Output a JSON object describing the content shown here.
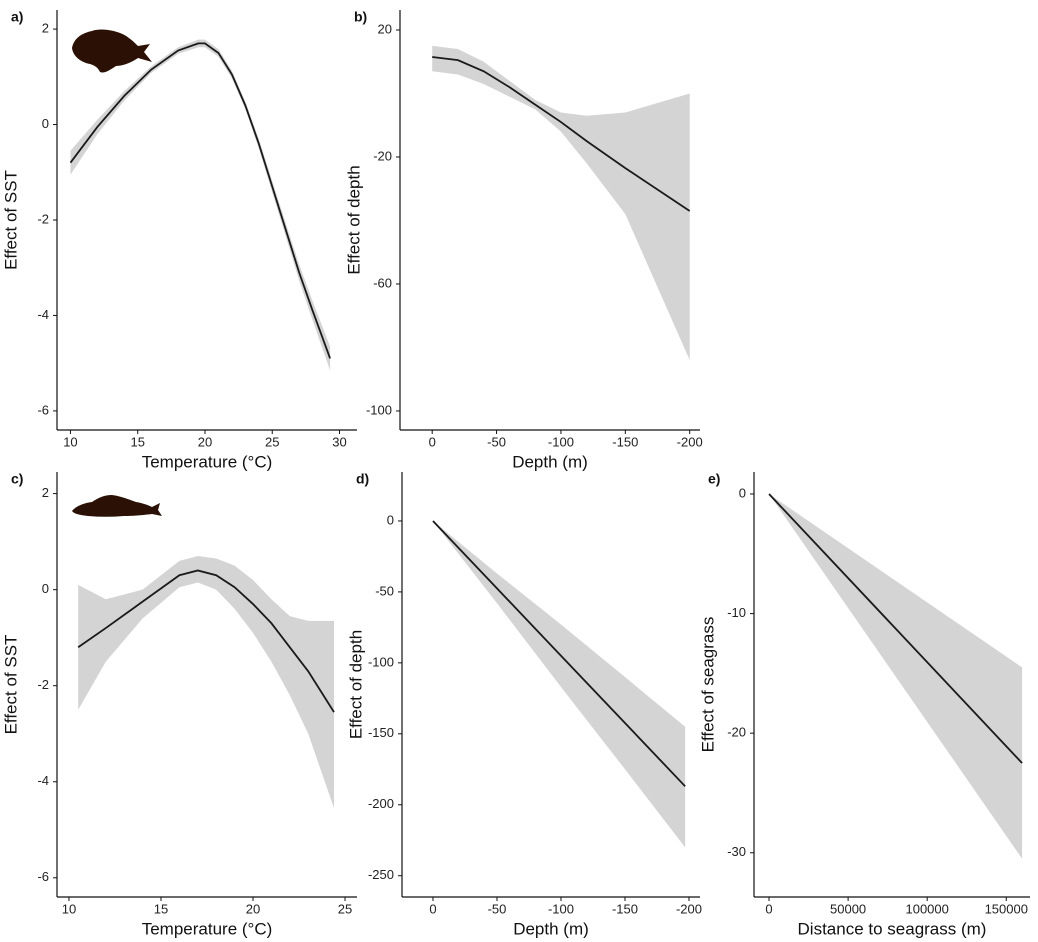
{
  "chart_data": [
    {
      "type": "line",
      "label": "a)",
      "xlabel": "Temperature (°C)",
      "ylabel": "Effect of SST",
      "x": [
        10,
        12,
        14,
        16,
        18,
        19.5,
        20,
        21,
        22,
        23,
        24,
        25,
        26,
        27,
        28,
        29.3
      ],
      "values": [
        -0.8,
        -0.05,
        0.6,
        1.15,
        1.55,
        1.7,
        1.7,
        1.5,
        1.05,
        0.4,
        -0.4,
        -1.3,
        -2.2,
        -3.1,
        -3.9,
        -4.9
      ],
      "upper": [
        -0.55,
        0.1,
        0.7,
        1.22,
        1.62,
        1.78,
        1.78,
        1.58,
        1.13,
        0.48,
        -0.3,
        -1.18,
        -2.06,
        -2.93,
        -3.7,
        -4.65
      ],
      "lower": [
        -1.05,
        -0.2,
        0.5,
        1.08,
        1.48,
        1.62,
        1.62,
        1.42,
        0.97,
        0.32,
        -0.5,
        -1.42,
        -2.34,
        -3.27,
        -4.1,
        -5.15
      ],
      "xlim": [
        9,
        31.3
      ],
      "ylim": [
        -6.4,
        2.4
      ],
      "xticks": [
        10,
        15,
        20,
        25,
        30
      ],
      "yticks": [
        2,
        0,
        -2,
        -4,
        -6
      ],
      "color": "#1a1a1a",
      "band_color": "#d4d4d4"
    },
    {
      "type": "line",
      "label": "b)",
      "xlabel": "Depth (m)",
      "ylabel": "Effect of depth",
      "x": [
        0,
        -20,
        -40,
        -60,
        -80,
        -100,
        -120,
        -150,
        -200
      ],
      "values": [
        11.5,
        10.5,
        7,
        2,
        -3.5,
        -9,
        -15,
        -23.5,
        -37
      ],
      "upper": [
        15,
        14,
        10,
        4,
        -2,
        -6,
        -7,
        -6,
        0
      ],
      "lower": [
        7,
        6,
        3,
        -1,
        -5,
        -12,
        -22,
        -38,
        -84
      ],
      "xlim": [
        25,
        -208
      ],
      "ylim": [
        -106,
        26.3
      ],
      "xticks": [
        0,
        -50,
        -100,
        -150,
        -200
      ],
      "yticks": [
        20,
        -20,
        -60,
        -100
      ],
      "color": "#1a1a1a",
      "band_color": "#d4d4d4"
    },
    {
      "type": "line",
      "label": "c)",
      "xlabel": "Temperature (°C)",
      "ylabel": "Effect of SST",
      "x": [
        10.5,
        12,
        14,
        16,
        17,
        18,
        19,
        20,
        21,
        22,
        23,
        24.4
      ],
      "values": [
        -1.2,
        -0.8,
        -0.25,
        0.3,
        0.4,
        0.3,
        0.05,
        -0.3,
        -0.7,
        -1.2,
        -1.7,
        -2.55
      ],
      "upper": [
        0.1,
        -0.2,
        0,
        0.6,
        0.7,
        0.65,
        0.5,
        0.2,
        -0.2,
        -0.55,
        -0.65,
        -0.65
      ],
      "lower": [
        -2.5,
        -1.5,
        -0.6,
        0.05,
        0.15,
        0,
        -0.4,
        -0.9,
        -1.5,
        -2.2,
        -3,
        -4.55
      ],
      "xlim": [
        9.35,
        25.65
      ],
      "ylim": [
        -6.4,
        2.45
      ],
      "xticks": [
        10,
        15,
        20,
        25
      ],
      "yticks": [
        2,
        0,
        -2,
        -4,
        -6
      ],
      "color": "#1a1a1a",
      "band_color": "#d4d4d4"
    },
    {
      "type": "line",
      "label": "d)",
      "xlabel": "Depth (m)",
      "ylabel": "Effect of depth",
      "x": [
        0,
        -50,
        -100,
        -150,
        -197
      ],
      "values": [
        0,
        -47.5,
        -95,
        -142.4,
        -187
      ],
      "upper": [
        0,
        -37,
        -73,
        -110,
        -145
      ],
      "lower": [
        0,
        -58,
        -117,
        -175,
        -230
      ],
      "xlim": [
        24.2,
        -208.6
      ],
      "ylim": [
        -265,
        34.5
      ],
      "xticks": [
        0,
        -50,
        -100,
        -150,
        -200
      ],
      "yticks": [
        0,
        -50,
        -100,
        -150,
        -200,
        -250
      ],
      "color": "#1a1a1a",
      "band_color": "#d4d4d4"
    },
    {
      "type": "line",
      "label": "e)",
      "xlabel": "Distance to seagrass (m)",
      "ylabel": "Effect of seagrass",
      "x": [
        0,
        160000
      ],
      "values": [
        0,
        -22.5
      ],
      "upper": [
        0,
        -14.5
      ],
      "lower": [
        0,
        -30.5
      ],
      "xlim": [
        -9500,
        165000
      ],
      "ylim": [
        -33.7,
        1.84
      ],
      "xticks": [
        0,
        50000,
        100000,
        150000
      ],
      "yticks": [
        0,
        -10,
        -20,
        -30
      ],
      "color": "#1a1a1a",
      "band_color": "#d4d4d4"
    }
  ]
}
